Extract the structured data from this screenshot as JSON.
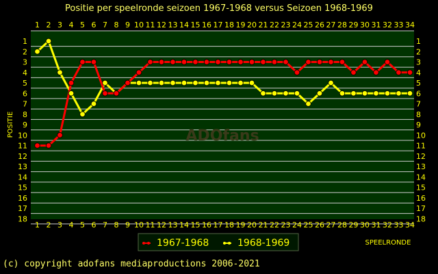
{
  "chart_data": {
    "type": "line",
    "title": "Positie per speelronde seizoen 1967-1968 versus Seizoen 1968-1969",
    "xlabel": "SPEELRONDE",
    "ylabel": "POSITIE",
    "x": [
      1,
      2,
      3,
      4,
      5,
      6,
      7,
      8,
      9,
      10,
      11,
      12,
      13,
      14,
      15,
      16,
      17,
      18,
      19,
      20,
      21,
      22,
      23,
      24,
      25,
      26,
      27,
      28,
      29,
      30,
      31,
      32,
      33,
      34
    ],
    "yticks": [
      1,
      2,
      3,
      4,
      5,
      6,
      7,
      8,
      9,
      10,
      11,
      12,
      13,
      14,
      15,
      16,
      17,
      18
    ],
    "ylim": [
      1,
      18
    ],
    "y_inverted": true,
    "grid": true,
    "legend_position": "bottom-left",
    "series": [
      {
        "name": "1967-1968",
        "color": "#ff0000",
        "values": [
          11,
          11,
          10,
          5,
          3,
          3,
          6,
          6,
          5,
          4,
          3,
          3,
          3,
          3,
          3,
          3,
          3,
          3,
          3,
          3,
          3,
          3,
          3,
          4,
          3,
          3,
          3,
          3,
          4,
          3,
          4,
          3,
          4,
          4
        ]
      },
      {
        "name": "1968-1969",
        "color": "#ffff00",
        "values": [
          2,
          1,
          4,
          6,
          8,
          7,
          5,
          6,
          5,
          5,
          5,
          5,
          5,
          5,
          5,
          5,
          5,
          5,
          5,
          5,
          6,
          6,
          6,
          6,
          7,
          6,
          5,
          6,
          6,
          6,
          6,
          6,
          6,
          6
        ]
      }
    ]
  },
  "watermark": "ADOfans",
  "copyright": "(c) copyright adofans mediaproductions 2006-2021",
  "colors": {
    "plot_bg": "#003300",
    "grid": "#cccccc",
    "text": "#ffff00",
    "title": "#ffff66"
  }
}
